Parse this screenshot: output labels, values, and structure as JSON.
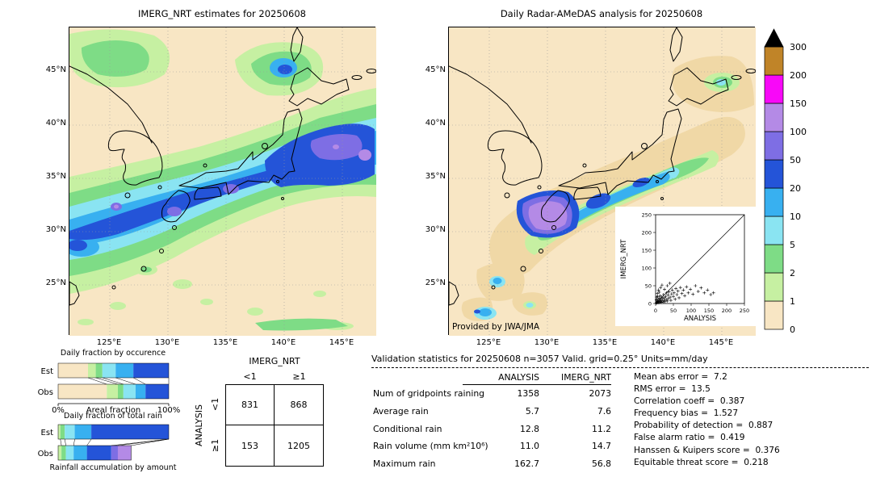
{
  "chart_data": [
    {
      "id": "imerg_map",
      "type": "heatmap",
      "title": "IMERG_NRT estimates for 20250608",
      "x_ticks": [
        "125°E",
        "130°E",
        "135°E",
        "140°E",
        "145°E"
      ],
      "y_ticks": [
        "45°N",
        "40°N",
        "35°N",
        "30°N",
        "25°N"
      ],
      "units": "mm/day",
      "levels": [
        0,
        1,
        2,
        5,
        10,
        20,
        50,
        100,
        150,
        200,
        300
      ],
      "description": "Daily precipitation map over Japan: broad SW-NE rain band (10-50 mm/day, locally 50-150) from the East China Sea across Kyushu, Shikoku and central-eastern Honshu; secondary maximum over the northern Sea of Japan; scattered light rain to the south."
    },
    {
      "id": "radar_map",
      "type": "heatmap",
      "title": "Daily Radar-AMeDAS analysis for 20250608",
      "x_ticks": [
        "125°E",
        "130°E",
        "135°E",
        "140°E",
        "145°E"
      ],
      "y_ticks": [
        "45°N",
        "40°N",
        "35°N",
        "30°N",
        "25°N"
      ],
      "units": "mm/day",
      "levels": [
        0,
        1,
        2,
        5,
        10,
        20,
        50,
        100,
        150,
        200,
        300
      ],
      "annotation": "Provided by JWA/JMA",
      "zero_shade": "#f0d8a6",
      "description": "Analyzed rain confined to a band along the Pacific side of western/central Japan with a 100-150 mm/day maximum near southern Kyushu; light rain patches northeast Japan and over the southwest islands."
    },
    {
      "id": "imerg_vs_analysis_scatter",
      "type": "scatter",
      "xlabel": "ANALYSIS",
      "ylabel": "IMERG_NRT",
      "xlim": [
        0,
        250
      ],
      "ylim": [
        0,
        250
      ],
      "x_ticks": [
        0,
        50,
        100,
        150,
        200,
        250
      ],
      "y_ticks": [
        0,
        50,
        100,
        150,
        200,
        250
      ],
      "diagonal": true,
      "marker": "+",
      "points": [
        [
          2,
          1
        ],
        [
          3,
          4
        ],
        [
          4,
          2
        ],
        [
          5,
          7
        ],
        [
          6,
          3
        ],
        [
          7,
          12
        ],
        [
          8,
          5
        ],
        [
          9,
          2
        ],
        [
          10,
          8
        ],
        [
          11,
          15
        ],
        [
          12,
          4
        ],
        [
          13,
          22
        ],
        [
          14,
          6
        ],
        [
          15,
          10
        ],
        [
          16,
          3
        ],
        [
          17,
          18
        ],
        [
          18,
          7
        ],
        [
          20,
          14
        ],
        [
          21,
          4
        ],
        [
          22,
          25
        ],
        [
          24,
          9
        ],
        [
          25,
          16
        ],
        [
          26,
          5
        ],
        [
          28,
          20
        ],
        [
          30,
          11
        ],
        [
          31,
          30
        ],
        [
          33,
          7
        ],
        [
          35,
          24
        ],
        [
          36,
          14
        ],
        [
          38,
          33
        ],
        [
          40,
          57
        ],
        [
          41,
          18
        ],
        [
          43,
          9
        ],
        [
          45,
          27
        ],
        [
          47,
          38
        ],
        [
          50,
          20
        ],
        [
          52,
          30
        ],
        [
          55,
          12
        ],
        [
          57,
          42
        ],
        [
          60,
          25
        ],
        [
          63,
          35
        ],
        [
          66,
          16
        ],
        [
          70,
          45
        ],
        [
          74,
          28
        ],
        [
          78,
          38
        ],
        [
          82,
          22
        ],
        [
          87,
          47
        ],
        [
          92,
          30
        ],
        [
          98,
          40
        ],
        [
          105,
          26
        ],
        [
          112,
          50
        ],
        [
          120,
          34
        ],
        [
          128,
          44
        ],
        [
          137,
          30
        ],
        [
          146,
          38
        ],
        [
          155,
          25
        ],
        [
          163,
          30
        ],
        [
          3,
          18
        ],
        [
          5,
          28
        ],
        [
          8,
          38
        ],
        [
          2,
          10
        ],
        [
          6,
          20
        ],
        [
          10,
          32
        ],
        [
          14,
          45
        ],
        [
          18,
          52
        ],
        [
          25,
          40
        ],
        [
          33,
          50
        ]
      ]
    },
    {
      "id": "occurrence",
      "type": "bar",
      "stacked": true,
      "title": "Daily fraction by occurence",
      "categories": [
        "Est",
        "Obs"
      ],
      "xlabel": "Areal fraction",
      "x_range_labels": [
        "0%",
        "100%"
      ],
      "series": [
        {
          "name": "0-1",
          "color_index": 0,
          "values": [
            0.27,
            0.44
          ]
        },
        {
          "name": "1-2",
          "color_index": 1,
          "values": [
            0.07,
            0.1
          ]
        },
        {
          "name": "2-5",
          "color_index": 2,
          "values": [
            0.06,
            0.05
          ]
        },
        {
          "name": "5-10",
          "color_index": 3,
          "values": [
            0.12,
            0.11
          ]
        },
        {
          "name": "10-20",
          "color_index": 4,
          "values": [
            0.16,
            0.09
          ]
        },
        {
          "name": "20-50",
          "color_index": 5,
          "values": [
            0.32,
            0.21
          ]
        }
      ]
    },
    {
      "id": "totalrain",
      "type": "bar",
      "stacked": true,
      "title": "Daily fraction of total rain",
      "caption": "Rainfall accumulation by amount",
      "categories": [
        "Est",
        "Obs"
      ],
      "series": [
        {
          "name": "1-2",
          "color_index": 1,
          "values": [
            0.02,
            0.03
          ]
        },
        {
          "name": "2-5",
          "color_index": 2,
          "values": [
            0.04,
            0.04
          ]
        },
        {
          "name": "5-10",
          "color_index": 3,
          "values": [
            0.09,
            0.07
          ]
        },
        {
          "name": "10-20",
          "color_index": 4,
          "values": [
            0.15,
            0.12
          ]
        },
        {
          "name": "20-50",
          "color_index": 5,
          "values": [
            0.7,
            0.22
          ]
        },
        {
          "name": "50-100",
          "color_index": 6,
          "values": [
            0.0,
            0.06
          ]
        },
        {
          "name": "100-150",
          "color_index": 7,
          "values": [
            0.0,
            0.12
          ]
        }
      ]
    },
    {
      "id": "contingency",
      "type": "table",
      "col_group": "IMERG_NRT",
      "row_group": "ANALYSIS",
      "col_labels": [
        "<1",
        "≥1"
      ],
      "row_labels": [
        "<1",
        "≥1"
      ],
      "values": [
        [
          "831",
          "868"
        ],
        [
          "153",
          "1205"
        ]
      ]
    },
    {
      "id": "validation",
      "type": "table",
      "title": "Validation statistics for 20250608  n=3057 Valid. grid=0.25° Units=mm/day",
      "columns": [
        "",
        "ANALYSIS",
        "IMERG_NRT"
      ],
      "rows": [
        [
          "Num of gridpoints raining",
          "1358",
          "2073"
        ],
        [
          "Average rain",
          "5.7",
          "7.6"
        ],
        [
          "Conditional rain",
          "12.8",
          "11.2"
        ],
        [
          "Rain volume (mm km²10⁶)",
          "11.0",
          "14.7"
        ],
        [
          "Maximum rain",
          "162.7",
          "56.8"
        ]
      ],
      "stats": [
        [
          "Mean abs error",
          "7.2"
        ],
        [
          "RMS error",
          "13.5"
        ],
        [
          "Correlation coeff",
          "0.387"
        ],
        [
          "Frequency bias",
          "1.527"
        ],
        [
          "Probability of detection",
          "0.887"
        ],
        [
          "False alarm ratio",
          "0.419"
        ],
        [
          "Hanssen & Kuipers score",
          "0.376"
        ],
        [
          "Equitable threat score",
          "0.218"
        ]
      ]
    },
    {
      "id": "colorbar",
      "type": "legend",
      "orientation": "vertical",
      "levels": [
        "0",
        "1",
        "2",
        "5",
        "10",
        "20",
        "50",
        "100",
        "150",
        "200",
        "300"
      ],
      "colors": [
        "#f8e6c4",
        "#c6f0a2",
        "#7edc86",
        "#8ae4f2",
        "#38b0f0",
        "#2454d8",
        "#7e6ee4",
        "#b48ae6",
        "#f808f8",
        "#c08428"
      ],
      "over_color": "#000000",
      "units": "mm/day"
    }
  ]
}
